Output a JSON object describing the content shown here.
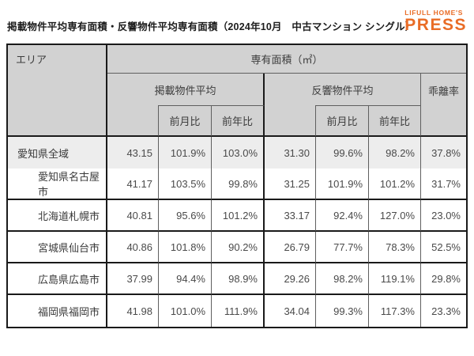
{
  "page": {
    "title": "掲載物件平均専有面積・反響物件平均専有面積（2024年10月　中古マンション シングル）",
    "logo": {
      "brand": "LIFULL HOME'S",
      "press": "PRESS"
    }
  },
  "colors": {
    "logo_orange": "#e96c26",
    "header_bg": "#d2d2d2",
    "highlight_row_bg": "#ededed",
    "border_thick": "#1a1a1a",
    "border_thin": "#5f5f5f"
  },
  "chart_data": {
    "type": "table",
    "title": "掲載物件平均専有面積・反響物件平均専有面積（2024年10月　中古マンション シングル）",
    "headers": {
      "area": "エリア",
      "floor_area": "専有面積（㎡）",
      "listed_group": "掲載物件平均",
      "response_group": "反響物件平均",
      "deviation": "乖離率",
      "mom": "前月比",
      "yoy": "前年比"
    },
    "rows": [
      {
        "area": "愛知県全域",
        "listed_avg": "43.15",
        "listed_mom": "101.9%",
        "listed_yoy": "103.0%",
        "response_avg": "31.30",
        "response_mom": "99.6%",
        "response_yoy": "98.2%",
        "deviation": "37.8%"
      },
      {
        "area": "愛知県名古屋市",
        "listed_avg": "41.17",
        "listed_mom": "103.5%",
        "listed_yoy": "99.8%",
        "response_avg": "31.25",
        "response_mom": "101.9%",
        "response_yoy": "101.2%",
        "deviation": "31.7%"
      },
      {
        "area": "北海道札幌市",
        "listed_avg": "40.81",
        "listed_mom": "95.6%",
        "listed_yoy": "101.2%",
        "response_avg": "33.17",
        "response_mom": "92.4%",
        "response_yoy": "127.0%",
        "deviation": "23.0%"
      },
      {
        "area": "宮城県仙台市",
        "listed_avg": "40.86",
        "listed_mom": "101.8%",
        "listed_yoy": "90.2%",
        "response_avg": "26.79",
        "response_mom": "77.7%",
        "response_yoy": "78.3%",
        "deviation": "52.5%"
      },
      {
        "area": "広島県広島市",
        "listed_avg": "37.99",
        "listed_mom": "94.4%",
        "listed_yoy": "98.9%",
        "response_avg": "29.26",
        "response_mom": "98.2%",
        "response_yoy": "119.1%",
        "deviation": "29.8%"
      },
      {
        "area": "福岡県福岡市",
        "listed_avg": "41.98",
        "listed_mom": "101.0%",
        "listed_yoy": "111.9%",
        "response_avg": "34.04",
        "response_mom": "99.3%",
        "response_yoy": "117.3%",
        "deviation": "23.3%"
      }
    ]
  }
}
